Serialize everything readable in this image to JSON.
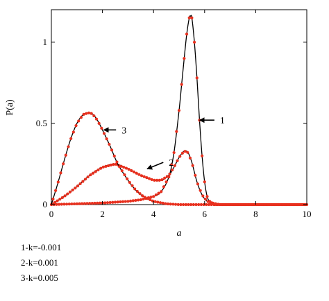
{
  "chart_data": {
    "type": "line",
    "title": "",
    "xlabel": "a",
    "ylabel": "P(a)",
    "xlim": [
      0,
      10
    ],
    "ylim": [
      0,
      1.2
    ],
    "xticks": [
      "0",
      "2",
      "4",
      "6",
      "8",
      "10"
    ],
    "yticks": [
      "0",
      "0.5",
      "1"
    ],
    "xtick_values": [
      0,
      2,
      4,
      6,
      8,
      10
    ],
    "ytick_values": [
      0,
      0.5,
      1
    ],
    "grid": false,
    "series": [
      {
        "name": "1",
        "line_color": "#000000",
        "marker_color": "#e8301e",
        "x": [
          0,
          1,
          2,
          3,
          3.5,
          4,
          4.3,
          4.6,
          4.8,
          5.0,
          5.1,
          5.2,
          5.3,
          5.4,
          5.45,
          5.5,
          5.6,
          5.7,
          5.8,
          5.9,
          6.0,
          6.1,
          6.2,
          6.4,
          7,
          8,
          9,
          10
        ],
        "y": [
          0,
          0.005,
          0.01,
          0.02,
          0.03,
          0.05,
          0.08,
          0.17,
          0.32,
          0.58,
          0.74,
          0.9,
          1.05,
          1.15,
          1.16,
          1.15,
          1.0,
          0.78,
          0.52,
          0.3,
          0.14,
          0.05,
          0.02,
          0.0,
          0,
          0,
          0,
          0
        ]
      },
      {
        "name": "2",
        "line_color": "#000000",
        "marker_color": "#e8301e",
        "x": [
          0,
          0.5,
          1,
          1.5,
          2,
          2.5,
          3,
          3.5,
          4,
          4.3,
          4.6,
          4.8,
          5.0,
          5.2,
          5.35,
          5.5,
          5.7,
          5.9,
          6.1,
          6.3,
          6.6,
          7,
          8,
          9,
          10
        ],
        "y": [
          0,
          0.05,
          0.11,
          0.18,
          0.23,
          0.25,
          0.22,
          0.18,
          0.15,
          0.15,
          0.18,
          0.23,
          0.29,
          0.33,
          0.32,
          0.26,
          0.14,
          0.06,
          0.02,
          0.01,
          0,
          0,
          0,
          0,
          0
        ]
      },
      {
        "name": "3",
        "line_color": "#000000",
        "marker_color": "#e8301e",
        "x": [
          0,
          0.25,
          0.5,
          0.75,
          1.0,
          1.25,
          1.45,
          1.6,
          1.8,
          2.0,
          2.3,
          2.6,
          3.0,
          3.3,
          3.6,
          4.0,
          4.5,
          5.0,
          5.5,
          6.0,
          7,
          8,
          9,
          10
        ],
        "y": [
          0,
          0.13,
          0.27,
          0.4,
          0.5,
          0.555,
          0.565,
          0.56,
          0.52,
          0.46,
          0.36,
          0.25,
          0.15,
          0.09,
          0.05,
          0.02,
          0.005,
          0,
          0,
          0,
          0,
          0,
          0,
          0
        ]
      }
    ],
    "annotations": [
      {
        "text": "1",
        "arrow_to": [
          5.75,
          0.52
        ],
        "label_at": [
          6.6,
          0.52
        ]
      },
      {
        "text": "2",
        "arrow_to": [
          3.7,
          0.22
        ],
        "label_at": [
          4.6,
          0.26
        ]
      },
      {
        "text": "3",
        "arrow_to": [
          2.0,
          0.46
        ],
        "label_at": [
          2.75,
          0.46
        ]
      }
    ]
  },
  "legend_lines": [
    "1-k=-0.001",
    "2-k=0.001",
    "3-k=0.005"
  ]
}
